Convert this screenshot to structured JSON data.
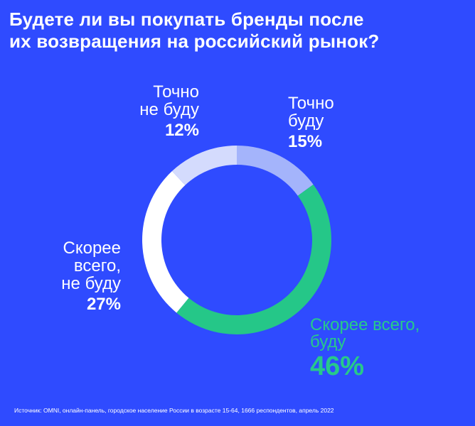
{
  "title_lines": [
    "Будете ли вы покупать бренды после",
    "их возвращения на российский рынок?"
  ],
  "source": "Источник: OMNI, онлайн-панель, городское население России в возрасте 15-64, 1666 респондентов, апрель 2022",
  "chart_data": {
    "type": "pie",
    "donut": true,
    "title": "Будете ли вы покупать бренды после их возвращения на российский рынок?",
    "categories": [
      "Точно буду",
      "Скорее всего, буду",
      "Скорее всего, не буду",
      "Точно не буду"
    ],
    "values": [
      15,
      46,
      27,
      12
    ],
    "value_labels": [
      "15%",
      "46%",
      "27%",
      "12%"
    ],
    "label_lines": [
      [
        "Точно",
        "буду"
      ],
      [
        "Скорее всего,",
        "буду"
      ],
      [
        "Скорее",
        "всего,",
        "не буду"
      ],
      [
        "Точно",
        "не буду"
      ]
    ],
    "colors": [
      "#a4b4fb",
      "#25c788",
      "#ffffff",
      "#d4dbfd"
    ],
    "start_angle_deg": 0,
    "direction": "clockwise"
  }
}
